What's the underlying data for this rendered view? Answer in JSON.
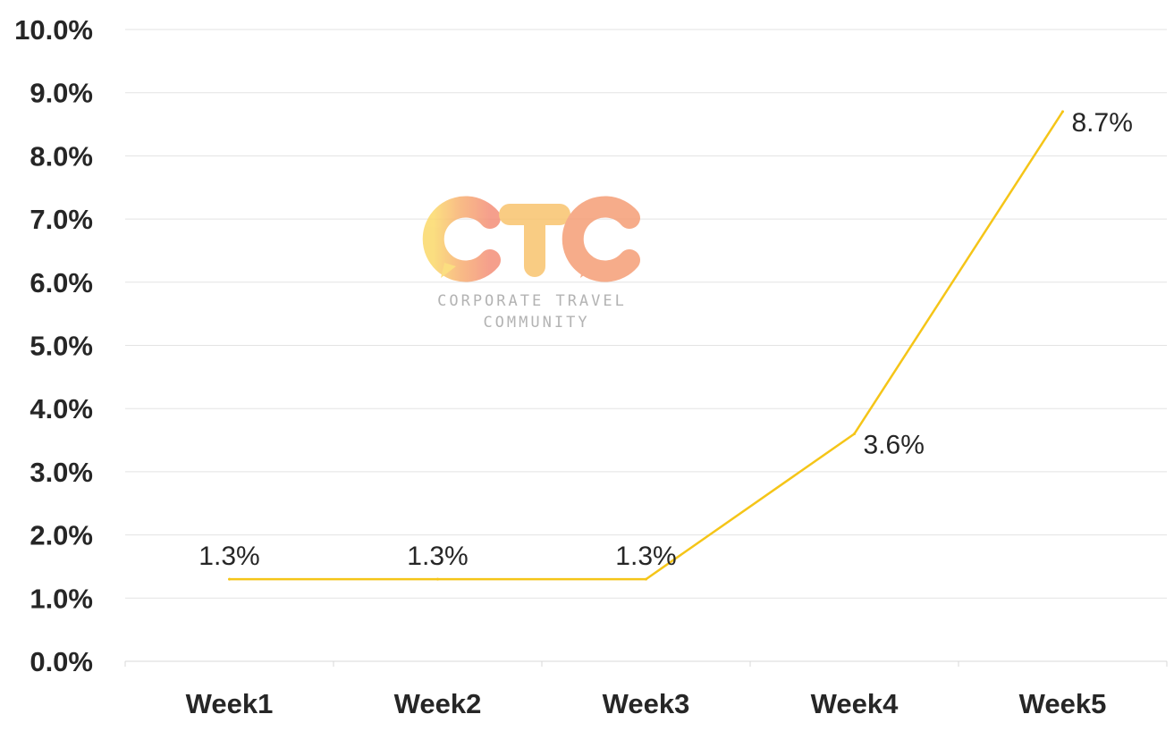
{
  "chart_data": {
    "type": "line",
    "categories": [
      "Week1",
      "Week2",
      "Week3",
      "Week4",
      "Week5"
    ],
    "series": [
      {
        "values": [
          1.3,
          1.3,
          1.3,
          3.6,
          8.7
        ],
        "color": "#f5c518"
      }
    ],
    "data_labels": [
      "1.3%",
      "1.3%",
      "1.3%",
      "3.6%",
      "8.7%"
    ],
    "yticks": [
      "0.0%",
      "1.0%",
      "2.0%",
      "3.0%",
      "4.0%",
      "5.0%",
      "6.0%",
      "7.0%",
      "8.0%",
      "9.0%",
      "10.0%"
    ],
    "ylim": [
      0,
      10
    ],
    "grid": true,
    "legend": "none"
  },
  "watermark": {
    "logo_text": "CTC",
    "line1": "CORPORATE TRAVEL",
    "line2": "COMMUNITY",
    "colors": [
      "#fbd96a",
      "#f7ae72",
      "#f48f78"
    ]
  }
}
